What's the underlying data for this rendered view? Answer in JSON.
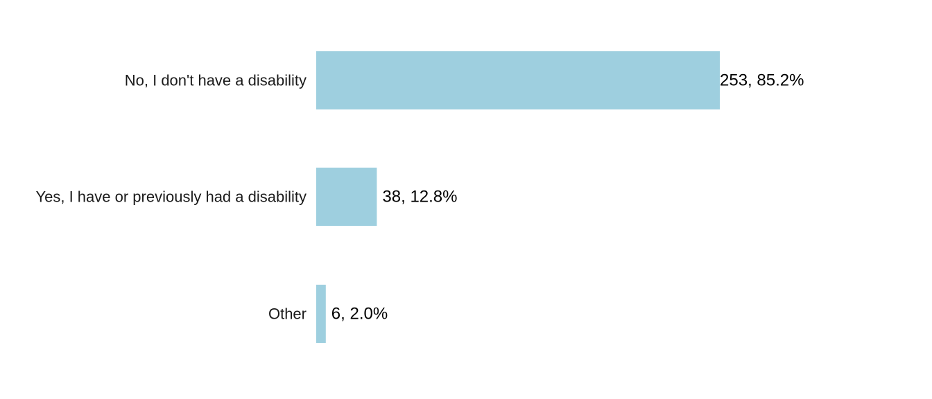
{
  "chart_data": {
    "type": "bar",
    "orientation": "horizontal",
    "categories": [
      "No, I don't have a disability",
      "Yes, I have or previously had a disability",
      "Other"
    ],
    "values": [
      253,
      38,
      6
    ],
    "data_labels": [
      "253, 85.2%",
      "38, 12.8%",
      "6, 2.0%"
    ],
    "title": "",
    "xlabel": "",
    "ylabel": "",
    "xlim": [
      0,
      253
    ],
    "grid": false,
    "legend": "none",
    "bar_color": "#9ecfdf"
  }
}
